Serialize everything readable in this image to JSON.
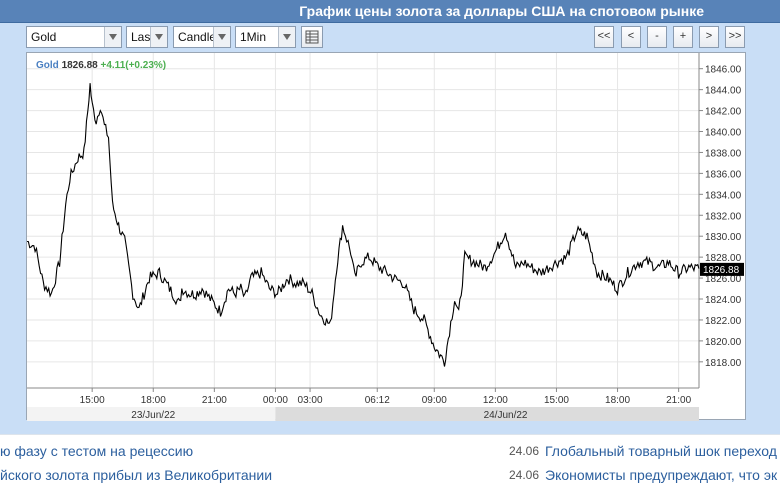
{
  "window": {
    "title": "График цены золота за доллары США на спотовом рынке"
  },
  "toolbar": {
    "symbol": "Gold",
    "price_type": "Last",
    "chart_type": "Candle",
    "interval": "1Min",
    "settings_icon": "table-icon",
    "nav_buttons": [
      "<<",
      "<",
      "-",
      "+",
      ">",
      ">>"
    ]
  },
  "legend": {
    "name": "Gold",
    "value": "1826.88",
    "change": "+4.11(+0.23%)",
    "name_color": "#4a7fc1",
    "change_color": "#4caf50"
  },
  "chart_data": {
    "type": "line",
    "series": [
      {
        "name": "Gold",
        "x": [
          0,
          0.4,
          0.8,
          1.2,
          1.6,
          1.9,
          2.1,
          2.5,
          2.8,
          3.1,
          3.2,
          3.4,
          3.6,
          3.8,
          4.0,
          4.2,
          4.5,
          4.8,
          5.0,
          5.2,
          5.5,
          6.0,
          6.5,
          7.0,
          7.5,
          7.6,
          8.0,
          8.3,
          8.6,
          9.0,
          9.5,
          9.9,
          10.2,
          10.5,
          10.7,
          11.0,
          11.5,
          11.9,
          12.3,
          12.8,
          13.2,
          13.6,
          14.0,
          14.4,
          14.9,
          15.2,
          15.5,
          15.9,
          16.1,
          16.4,
          16.8,
          17.3,
          17.7,
          18.0,
          18.5,
          19.0,
          19.5,
          20.0,
          20.5,
          21.0,
          21.2,
          21.5,
          22.0,
          22.5,
          23.0,
          23.5,
          24.0,
          24.4,
          24.8,
          25.2,
          25.6,
          26.0,
          26.5,
          27.0,
          27.5,
          28.0,
          28.5,
          29.0,
          29.5,
          30.0,
          30.5,
          31.0,
          31.5,
          32.0,
          32.5,
          33.0
        ],
        "values": [
          1829.5,
          1829.0,
          1825.5,
          1824.5,
          1827.5,
          1833.0,
          1835.5,
          1837.5,
          1838.0,
          1844.5,
          1842.5,
          1841.0,
          1842.5,
          1840.5,
          1839.5,
          1833.0,
          1831.0,
          1829.5,
          1827.0,
          1824.5,
          1823.0,
          1826.0,
          1826.5,
          1825.0,
          1823.5,
          1825.0,
          1824.5,
          1824.5,
          1825.0,
          1824.0,
          1822.8,
          1825.0,
          1824.5,
          1825.0,
          1824.0,
          1826.0,
          1826.5,
          1825.0,
          1824.5,
          1826.0,
          1825.5,
          1825.5,
          1824.5,
          1822.5,
          1821.5,
          1827.0,
          1831.0,
          1828.5,
          1826.0,
          1827.5,
          1828.0,
          1827.0,
          1826.5,
          1826.0,
          1825.5,
          1823.0,
          1822.0,
          1819.5,
          1818.0,
          1824.0,
          1822.5,
          1828.0,
          1827.5,
          1827.0,
          1828.5,
          1830.5,
          1827.0,
          1827.5,
          1827.0,
          1826.5,
          1827.0,
          1827.5,
          1828.0,
          1830.5,
          1830.0,
          1826.5,
          1826.0,
          1825.0,
          1826.5,
          1827.5,
          1827.5,
          1827.0,
          1827.5,
          1826.5,
          1827.0,
          1826.9
        ],
        "color": "#000000"
      }
    ],
    "y_range": [
      1815.5,
      1847.5
    ],
    "y_ticks": [
      "1846.00",
      "1844.00",
      "1842.00",
      "1840.00",
      "1838.00",
      "1836.00",
      "1834.00",
      "1832.00",
      "1830.00",
      "1828.00",
      "1826.00",
      "1824.00",
      "1822.00",
      "1820.00",
      "1818.00"
    ],
    "x_ticks": [
      {
        "label": "15:00",
        "t": 3.2
      },
      {
        "label": "18:00",
        "t": 6.2
      },
      {
        "label": "21:00",
        "t": 9.2
      },
      {
        "label": "00:00",
        "t": 12.2
      },
      {
        "label": "03:00",
        "t": 13.9
      },
      {
        "label": "06:12",
        "t": 17.2
      },
      {
        "label": "09:00",
        "t": 20.0
      },
      {
        "label": "12:00",
        "t": 23.0
      },
      {
        "label": "15:00",
        "t": 26.0
      },
      {
        "label": "18:00",
        "t": 29.0
      },
      {
        "label": "21:00",
        "t": 32.0
      }
    ],
    "dates": [
      {
        "label": "23/Jun/22",
        "t": 6.2
      },
      {
        "label": "24/Jun/22",
        "t": 23.5
      }
    ],
    "last_price": "1826.88",
    "grid": true
  },
  "news": [
    {
      "date": "",
      "text": "ю фазу с тестом на рецессию"
    },
    {
      "date": "24.06",
      "text": "Глобальный товарный шок переход"
    },
    {
      "date": "",
      "text": "йского золота прибыл из Великобритании"
    },
    {
      "date": "24.06",
      "text": "Экономисты предупреждают, что эк"
    }
  ]
}
